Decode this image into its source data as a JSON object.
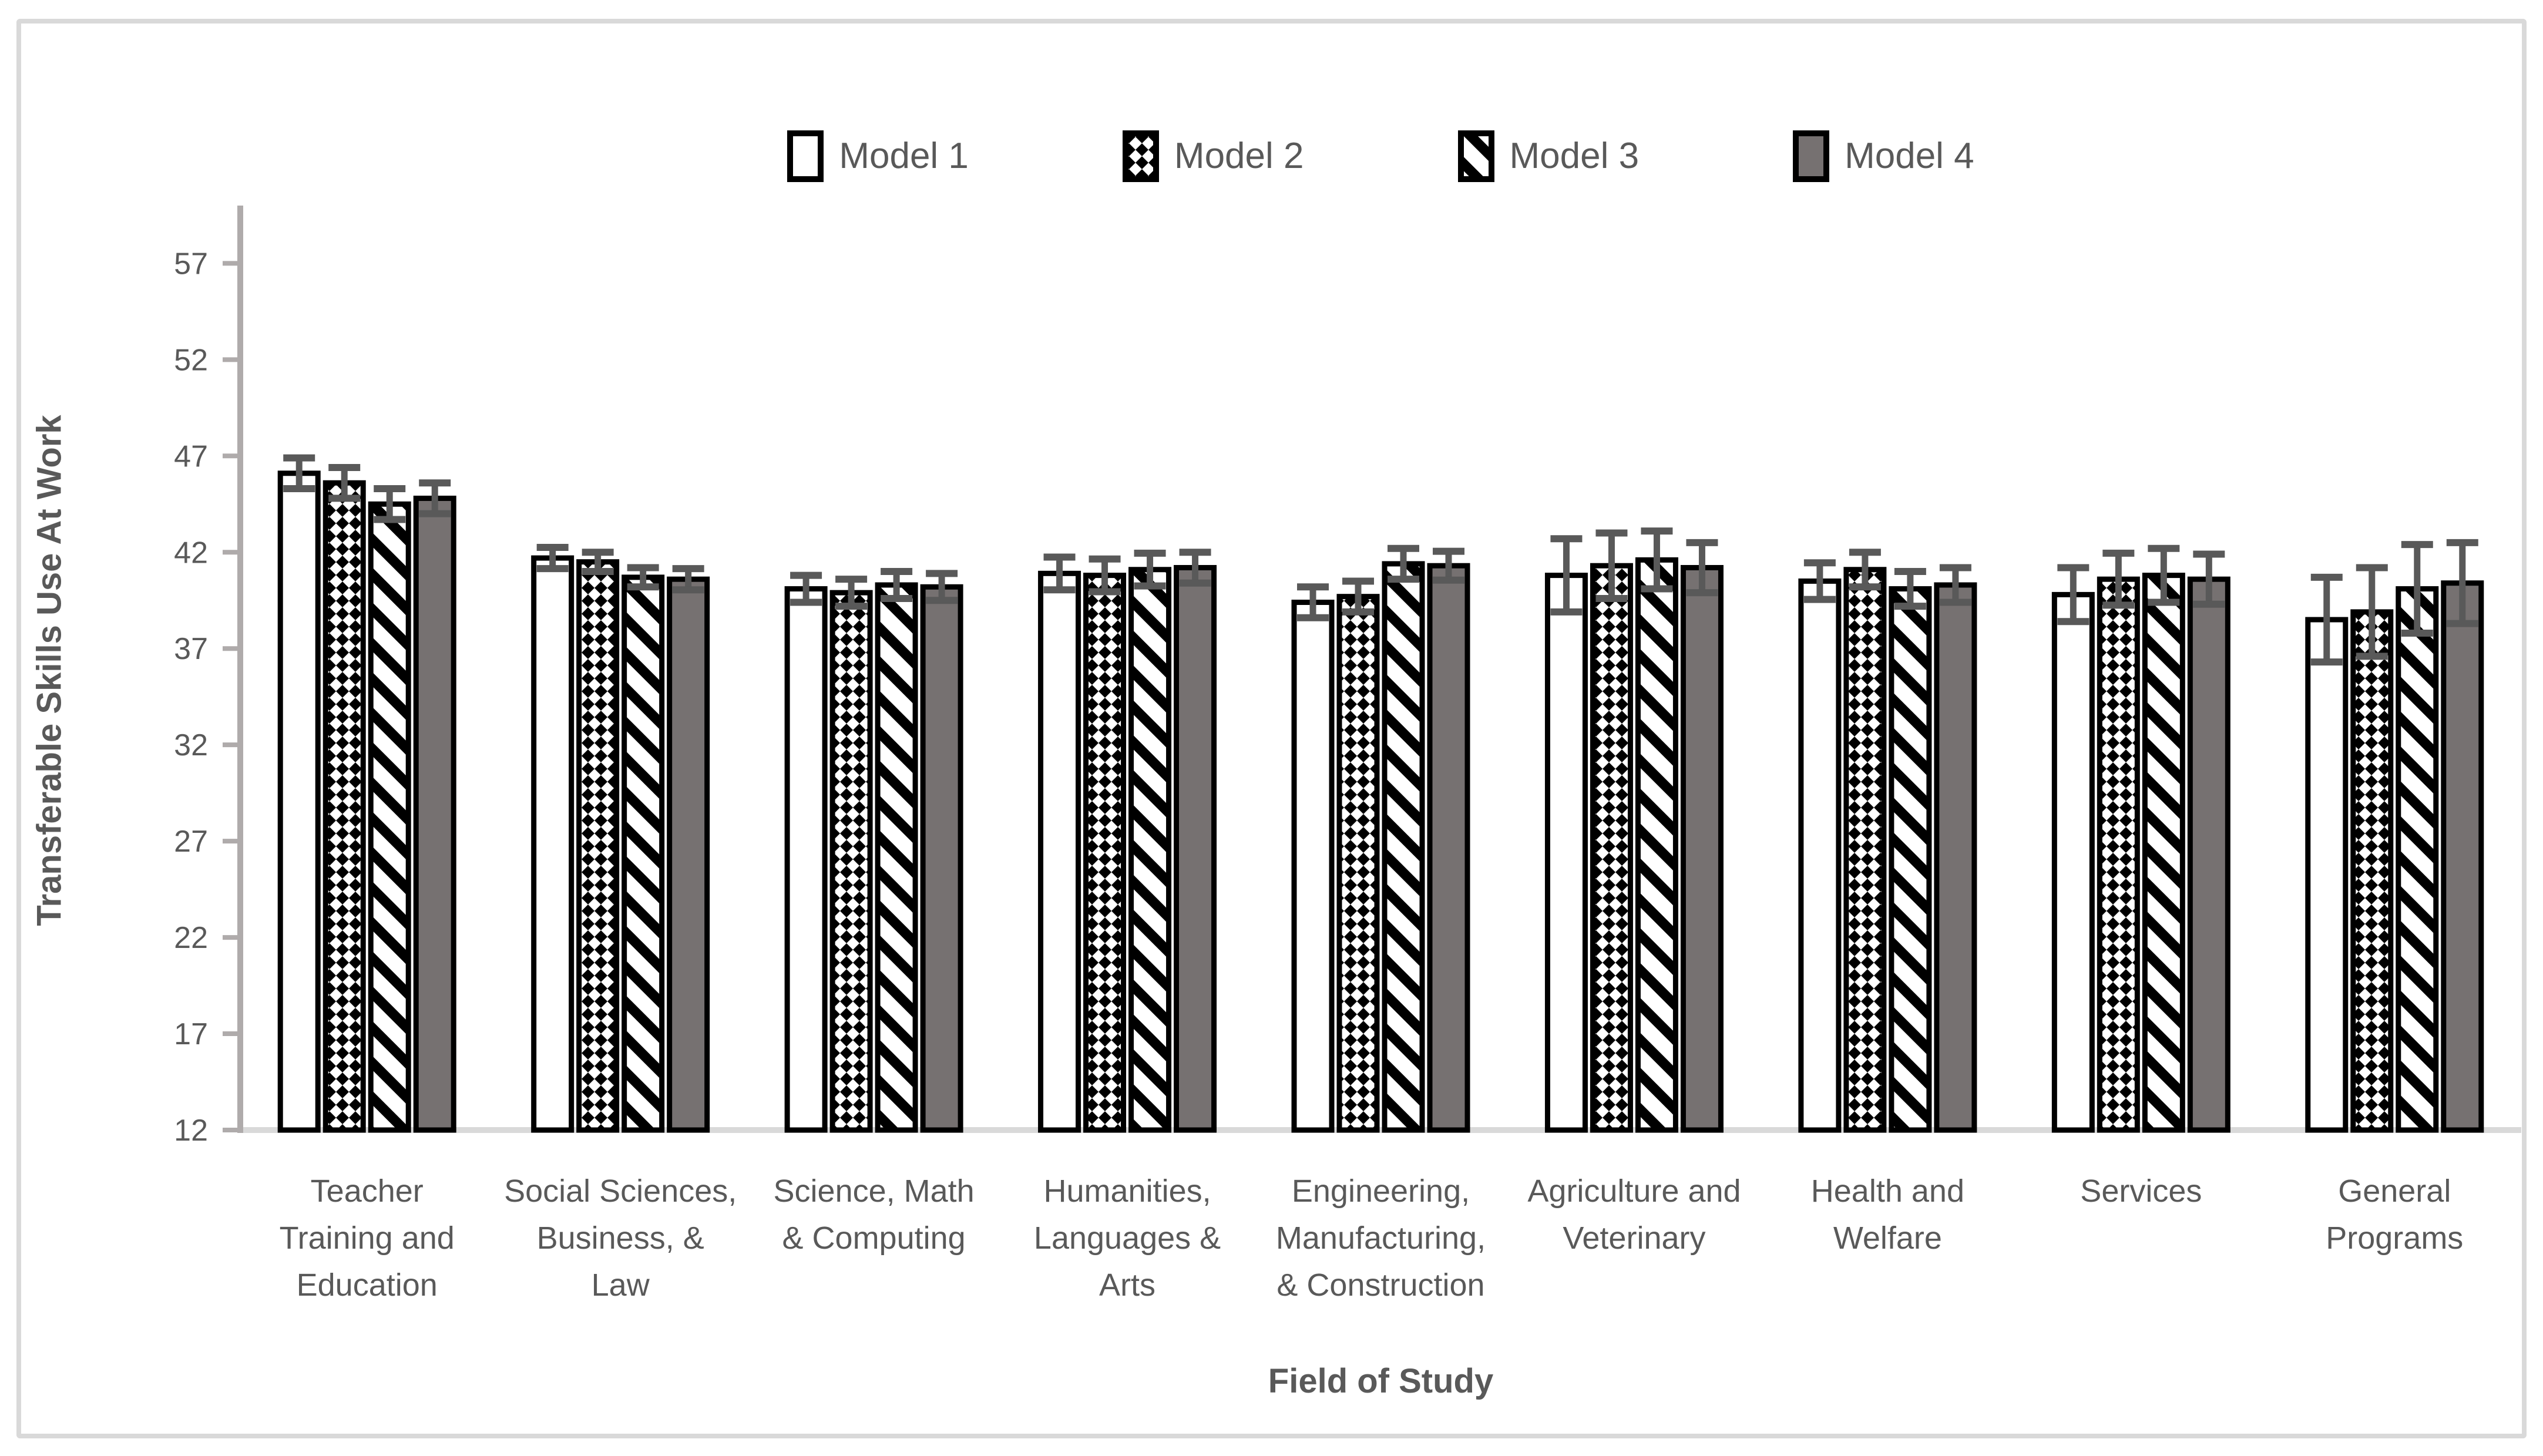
{
  "figure": {
    "border_color": "#D9D9D9",
    "background": "#ffffff"
  },
  "colors": {
    "text": "#595959",
    "axis_line": "#AFABAB",
    "baseline": "#D9D9D9",
    "error_bar": "#595959",
    "bar_border": "#000000",
    "model4_fill": "#767171",
    "white": "#ffffff",
    "black": "#000000"
  },
  "legend": {
    "items": [
      {
        "label": "Model 1",
        "fill": "white"
      },
      {
        "label": "Model 2",
        "fill": "checker"
      },
      {
        "label": "Model 3",
        "fill": "diagonal"
      },
      {
        "label": "Model 4",
        "fill": "gray"
      }
    ]
  },
  "chart_data": {
    "type": "bar",
    "title": "",
    "xlabel": "Field of Study",
    "ylabel": "Transferable Skills Use At Work",
    "ylim": [
      12,
      60
    ],
    "yticks": [
      12,
      17,
      22,
      27,
      32,
      37,
      42,
      47,
      52,
      57
    ],
    "grid": false,
    "legend_position": "top",
    "categories": [
      "Teacher Training and Education",
      "Social Sciences, Business, & Law",
      "Science, Math & Computing",
      "Humanities, Languages & Arts",
      "Engineering, Manufacturing, & Construction",
      "Agriculture and Veterinary",
      "Health and Welfare",
      "Services",
      "General Programs"
    ],
    "category_lines": [
      [
        "Teacher",
        "Training and",
        "Education"
      ],
      [
        "Social Sciences,",
        "Business, &",
        "Law"
      ],
      [
        "Science, Math",
        "& Computing"
      ],
      [
        "Humanities,",
        "Languages &",
        "Arts"
      ],
      [
        "Engineering,",
        "Manufacturing,",
        "& Construction"
      ],
      [
        "Agriculture and",
        "Veterinary"
      ],
      [
        "Health and",
        "Welfare"
      ],
      [
        "Services"
      ],
      [
        "General",
        "Programs"
      ]
    ],
    "series": [
      {
        "name": "Model 1",
        "pattern": "white",
        "values": [
          46.1,
          41.7,
          40.1,
          40.9,
          39.4,
          40.8,
          40.5,
          39.8,
          38.5
        ],
        "errors": [
          0.8,
          0.55,
          0.7,
          0.85,
          0.8,
          1.9,
          0.95,
          1.4,
          2.2
        ]
      },
      {
        "name": "Model 2",
        "pattern": "checker",
        "values": [
          45.6,
          41.5,
          39.9,
          40.8,
          39.7,
          41.3,
          41.1,
          40.6,
          38.9
        ],
        "errors": [
          0.8,
          0.5,
          0.7,
          0.85,
          0.8,
          1.7,
          0.9,
          1.35,
          2.3
        ]
      },
      {
        "name": "Model 3",
        "pattern": "diagonal",
        "values": [
          44.5,
          40.7,
          40.3,
          41.1,
          41.4,
          41.6,
          40.1,
          40.8,
          40.1
        ],
        "errors": [
          0.8,
          0.5,
          0.7,
          0.85,
          0.8,
          1.5,
          0.9,
          1.4,
          2.3
        ]
      },
      {
        "name": "Model 4",
        "pattern": "gray",
        "values": [
          44.8,
          40.6,
          40.2,
          41.2,
          41.3,
          41.2,
          40.3,
          40.6,
          40.4
        ],
        "errors": [
          0.8,
          0.55,
          0.7,
          0.8,
          0.75,
          1.3,
          0.9,
          1.3,
          2.1
        ]
      }
    ]
  }
}
